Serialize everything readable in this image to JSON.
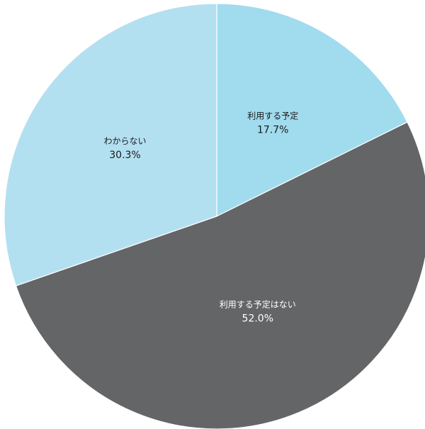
{
  "chart_data": {
    "type": "pie",
    "start": "12 o'clock",
    "direction": "clockwise",
    "slices": [
      {
        "label": "利用する予定",
        "value": 17.7,
        "value_text": "17.7%",
        "color": "#a1dbee",
        "text_color": "#1a1a1a"
      },
      {
        "label": "利用する予定はない",
        "value": 52.0,
        "value_text": "52.0%",
        "color": "#646567",
        "text_color": "#ffffff"
      },
      {
        "label": "わからない",
        "value": 30.3,
        "value_text": "30.3%",
        "color": "#b3e0f1",
        "text_color": "#1a1a1a"
      }
    ]
  }
}
